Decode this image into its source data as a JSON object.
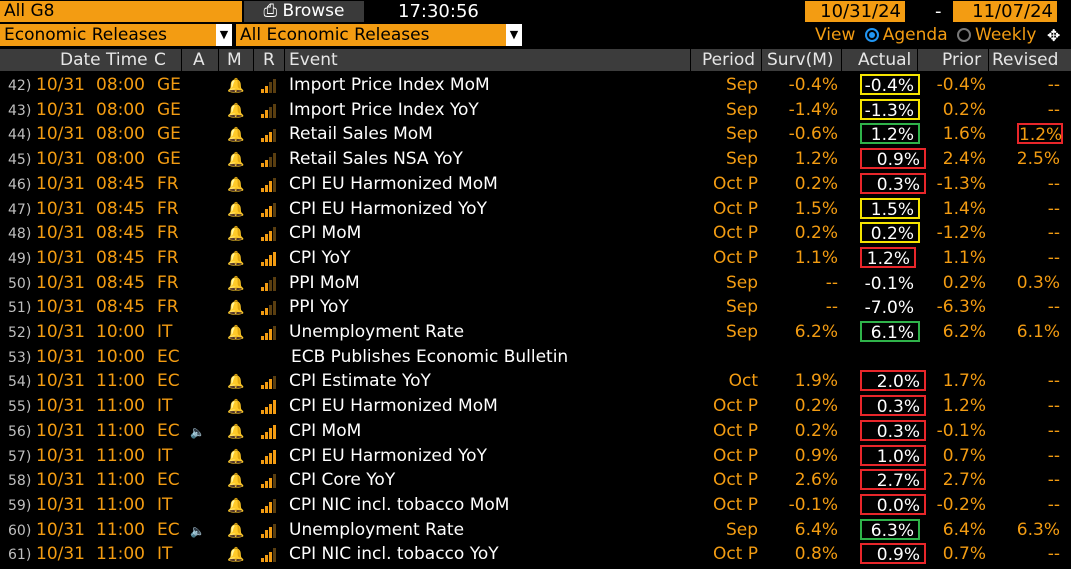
{
  "topbar": {
    "filter": "All G8",
    "browse": "Browse",
    "clock": "17:30:56",
    "date_from": "10/31/24",
    "date_to": "11/07/24",
    "dash": "-"
  },
  "toolbar": {
    "releases_type": "Economic Releases",
    "releases_filter": "All Economic Releases",
    "view_label": "View",
    "agenda_label": "Agenda",
    "weekly_label": "Weekly"
  },
  "columns": {
    "datetime": "Date Time",
    "country": "C",
    "a": "A",
    "m": "M",
    "r": "R",
    "event": "Event",
    "period": "Period",
    "survey": "Surv(M)",
    "actual": "Actual",
    "prior": "Prior",
    "revised": "Revised"
  },
  "rows": [
    {
      "idx": "42)",
      "date": "10/31",
      "time": "08:00",
      "c": "GE",
      "audio": false,
      "bell": true,
      "r": 2,
      "event": "Import Price Index MoM",
      "period": "Sep",
      "surv": "-0.4%",
      "actual": "-0.4%",
      "prior": "-0.4%",
      "revised": "--",
      "box": "yellow",
      "rbox": false
    },
    {
      "idx": "43)",
      "date": "10/31",
      "time": "08:00",
      "c": "GE",
      "audio": false,
      "bell": true,
      "r": 2,
      "event": "Import Price Index YoY",
      "period": "Sep",
      "surv": "-1.4%",
      "actual": "-1.3%",
      "prior": "0.2%",
      "revised": "--",
      "box": "yellow",
      "rbox": false
    },
    {
      "idx": "44)",
      "date": "10/31",
      "time": "08:00",
      "c": "GE",
      "audio": false,
      "bell": true,
      "r": 3,
      "event": "Retail Sales MoM",
      "period": "Sep",
      "surv": "-0.6%",
      "actual": "1.2%",
      "prior": "1.6%",
      "revised": "1.2%",
      "box": "green",
      "rbox": true
    },
    {
      "idx": "45)",
      "date": "10/31",
      "time": "08:00",
      "c": "GE",
      "audio": false,
      "bell": true,
      "r": 2,
      "event": "Retail Sales NSA YoY",
      "period": "Sep",
      "surv": "1.2%",
      "actual": "0.9%",
      "prior": "2.4%",
      "revised": "2.5%",
      "box": "red",
      "rbox": false
    },
    {
      "idx": "46)",
      "date": "10/31",
      "time": "08:45",
      "c": "FR",
      "audio": false,
      "bell": true,
      "r": 3,
      "event": "CPI EU Harmonized MoM",
      "period": "Oct P",
      "surv": "0.2%",
      "actual": "0.3%",
      "prior": "-1.3%",
      "revised": "--",
      "box": "red",
      "rbox": false
    },
    {
      "idx": "47)",
      "date": "10/31",
      "time": "08:45",
      "c": "FR",
      "audio": false,
      "bell": true,
      "r": 3,
      "event": "CPI EU Harmonized YoY",
      "period": "Oct P",
      "surv": "1.5%",
      "actual": "1.5%",
      "prior": "1.4%",
      "revised": "--",
      "box": "yellow",
      "rbox": false
    },
    {
      "idx": "48)",
      "date": "10/31",
      "time": "08:45",
      "c": "FR",
      "audio": false,
      "bell": true,
      "r": 3,
      "event": "CPI MoM",
      "period": "Oct P",
      "surv": "0.2%",
      "actual": "0.2%",
      "prior": "-1.2%",
      "revised": "--",
      "box": "yellow",
      "rbox": false
    },
    {
      "idx": "49)",
      "date": "10/31",
      "time": "08:45",
      "c": "FR",
      "audio": false,
      "bell": true,
      "r": 4,
      "event": "CPI YoY",
      "period": "Oct P",
      "surv": "1.1%",
      "actual": "1.2%",
      "prior": "1.1%",
      "revised": "--",
      "box": "red",
      "rbox": false
    },
    {
      "idx": "50)",
      "date": "10/31",
      "time": "08:45",
      "c": "FR",
      "audio": false,
      "bell": true,
      "r": 2,
      "event": "PPI MoM",
      "period": "Sep",
      "surv": "--",
      "actual": "-0.1%",
      "prior": "0.2%",
      "revised": "0.3%",
      "box": "",
      "rbox": false
    },
    {
      "idx": "51)",
      "date": "10/31",
      "time": "08:45",
      "c": "FR",
      "audio": false,
      "bell": true,
      "r": 2,
      "event": "PPI YoY",
      "period": "Sep",
      "surv": "--",
      "actual": "-7.0%",
      "prior": "-6.3%",
      "revised": "--",
      "box": "",
      "rbox": false
    },
    {
      "idx": "52)",
      "date": "10/31",
      "time": "10:00",
      "c": "IT",
      "audio": false,
      "bell": true,
      "r": 3,
      "event": "Unemployment Rate",
      "period": "Sep",
      "surv": "6.2%",
      "actual": "6.1%",
      "prior": "6.2%",
      "revised": "6.1%",
      "box": "green",
      "rbox": false
    },
    {
      "idx": "53)",
      "date": "10/31",
      "time": "10:00",
      "c": "EC",
      "audio": false,
      "bell": false,
      "r": 0,
      "event": "ECB Publishes Economic Bulletin",
      "period": "",
      "surv": "",
      "actual": "",
      "prior": "",
      "revised": "",
      "box": "",
      "rbox": false,
      "wide": true
    },
    {
      "idx": "54)",
      "date": "10/31",
      "time": "11:00",
      "c": "EC",
      "audio": false,
      "bell": true,
      "r": 3,
      "event": "CPI Estimate YoY",
      "period": "Oct",
      "surv": "1.9%",
      "actual": "2.0%",
      "prior": "1.7%",
      "revised": "--",
      "box": "red",
      "rbox": false
    },
    {
      "idx": "55)",
      "date": "10/31",
      "time": "11:00",
      "c": "IT",
      "audio": false,
      "bell": true,
      "r": 4,
      "event": "CPI EU Harmonized MoM",
      "period": "Oct P",
      "surv": "0.2%",
      "actual": "0.3%",
      "prior": "1.2%",
      "revised": "--",
      "box": "red",
      "rbox": false
    },
    {
      "idx": "56)",
      "date": "10/31",
      "time": "11:00",
      "c": "EC",
      "audio": true,
      "bell": true,
      "r": 4,
      "event": "CPI MoM",
      "period": "Oct P",
      "surv": "0.2%",
      "actual": "0.3%",
      "prior": "-0.1%",
      "revised": "--",
      "box": "red",
      "rbox": false
    },
    {
      "idx": "57)",
      "date": "10/31",
      "time": "11:00",
      "c": "IT",
      "audio": false,
      "bell": true,
      "r": 4,
      "event": "CPI EU Harmonized YoY",
      "period": "Oct P",
      "surv": "0.9%",
      "actual": "1.0%",
      "prior": "0.7%",
      "revised": "--",
      "box": "red",
      "rbox": false
    },
    {
      "idx": "58)",
      "date": "10/31",
      "time": "11:00",
      "c": "EC",
      "audio": false,
      "bell": true,
      "r": 3,
      "event": "CPI Core YoY",
      "period": "Oct P",
      "surv": "2.6%",
      "actual": "2.7%",
      "prior": "2.7%",
      "revised": "--",
      "box": "red",
      "rbox": false
    },
    {
      "idx": "59)",
      "date": "10/31",
      "time": "11:00",
      "c": "IT",
      "audio": false,
      "bell": true,
      "r": 3,
      "event": "CPI NIC incl. tobacco MoM",
      "period": "Oct P",
      "surv": "-0.1%",
      "actual": "0.0%",
      "prior": "-0.2%",
      "revised": "--",
      "box": "red",
      "rbox": false
    },
    {
      "idx": "60)",
      "date": "10/31",
      "time": "11:00",
      "c": "EC",
      "audio": true,
      "bell": true,
      "r": 3,
      "event": "Unemployment Rate",
      "period": "Sep",
      "surv": "6.4%",
      "actual": "6.3%",
      "prior": "6.4%",
      "revised": "6.3%",
      "box": "green",
      "rbox": false
    },
    {
      "idx": "61)",
      "date": "10/31",
      "time": "11:00",
      "c": "IT",
      "audio": false,
      "bell": true,
      "r": 3,
      "event": "CPI NIC incl. tobacco YoY",
      "period": "Oct P",
      "surv": "0.8%",
      "actual": "0.9%",
      "prior": "0.7%",
      "revised": "--",
      "box": "red",
      "rbox": false
    }
  ],
  "icons": {
    "bell": "bell-icon",
    "speaker": "speaker-icon",
    "relevance": "signal-bars-icon",
    "settings": "settings-icon"
  },
  "colors": {
    "accent": "#f39c12",
    "beat": "#2fb34a",
    "miss": "#e8262a",
    "inline": "#f5e400"
  }
}
